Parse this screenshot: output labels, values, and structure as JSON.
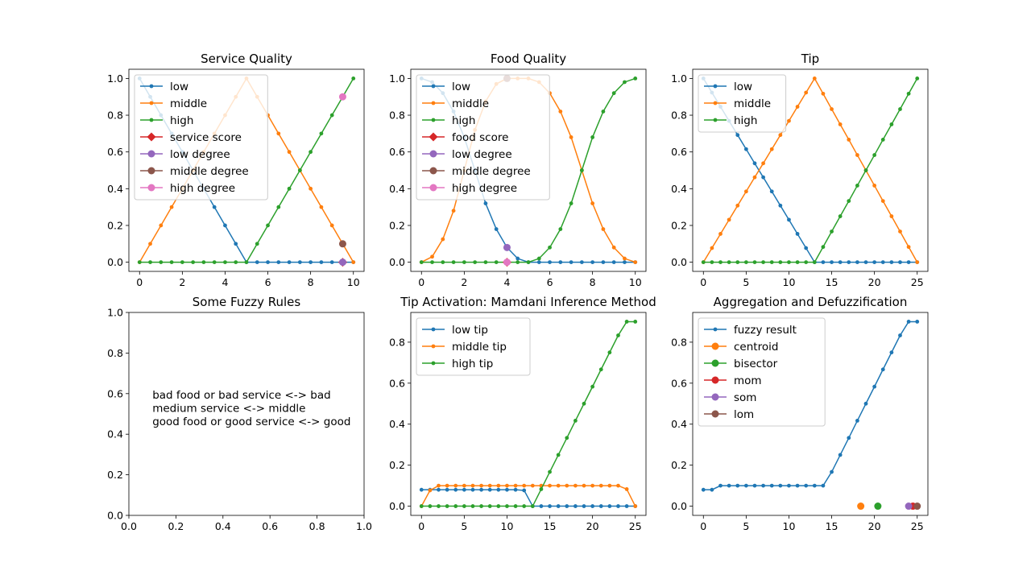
{
  "colors": {
    "blue": "#1f77b4",
    "orange": "#ff7f0e",
    "green": "#2ca02c",
    "red": "#d62728",
    "purple": "#9467bd",
    "brown": "#8c564b",
    "pink": "#e377c2"
  },
  "chart_data": [
    {
      "type": "line",
      "title": "Service Quality",
      "xlim": [
        -0.5,
        10.5
      ],
      "ylim": [
        -0.05,
        1.05
      ],
      "xticks": [
        0,
        2,
        4,
        6,
        8,
        10
      ],
      "yticks": [
        0.0,
        0.2,
        0.4,
        0.6,
        0.8,
        1.0
      ],
      "xtick_labels": [
        "0",
        "2",
        "4",
        "6",
        "8",
        "10"
      ],
      "ytick_labels": [
        "0.0",
        "0.2",
        "0.4",
        "0.6",
        "0.8",
        "1.0"
      ],
      "legend_position": "upper-left",
      "x": [
        0,
        0.5,
        1,
        1.5,
        2,
        2.5,
        3,
        3.5,
        4,
        4.5,
        5,
        5.5,
        6,
        6.5,
        7,
        7.5,
        8,
        8.5,
        9,
        9.5,
        10
      ],
      "series": [
        {
          "name": "low",
          "color": "blue",
          "style": "line-dot",
          "y": [
            1,
            0.9,
            0.8,
            0.7,
            0.6,
            0.5,
            0.4,
            0.3,
            0.2,
            0.1,
            0,
            0,
            0,
            0,
            0,
            0,
            0,
            0,
            0,
            0,
            0
          ]
        },
        {
          "name": "middle",
          "color": "orange",
          "style": "line-dot",
          "y": [
            0,
            0.1,
            0.2,
            0.3,
            0.4,
            0.5,
            0.6,
            0.7,
            0.8,
            0.9,
            1.0,
            0.9,
            0.8,
            0.7,
            0.6,
            0.5,
            0.4,
            0.3,
            0.2,
            0.1,
            0
          ]
        },
        {
          "name": "high",
          "color": "green",
          "style": "line-dot",
          "y": [
            0,
            0,
            0,
            0,
            0,
            0,
            0,
            0,
            0,
            0,
            0,
            0.1,
            0.2,
            0.3,
            0.4,
            0.5,
            0.6,
            0.7,
            0.8,
            0.9,
            1.0
          ]
        },
        {
          "name": "service score",
          "color": "red",
          "style": "diamond",
          "points": [
            [
              9.5,
              0
            ]
          ]
        },
        {
          "name": "low degree",
          "color": "purple",
          "style": "circle",
          "points": [
            [
              9.5,
              0
            ]
          ]
        },
        {
          "name": "middle degree",
          "color": "brown",
          "style": "circle",
          "points": [
            [
              9.5,
              0.1
            ]
          ]
        },
        {
          "name": "high degree",
          "color": "pink",
          "style": "circle",
          "points": [
            [
              9.5,
              0.9
            ]
          ]
        }
      ]
    },
    {
      "type": "line",
      "title": "Food Quality",
      "xlim": [
        -0.5,
        10.5
      ],
      "ylim": [
        -0.05,
        1.05
      ],
      "xticks": [
        0,
        2,
        4,
        6,
        8,
        10
      ],
      "yticks": [
        0.0,
        0.2,
        0.4,
        0.6,
        0.8,
        1.0
      ],
      "xtick_labels": [
        "0",
        "2",
        "4",
        "6",
        "8",
        "10"
      ],
      "ytick_labels": [
        "0.0",
        "0.2",
        "0.4",
        "0.6",
        "0.8",
        "1.0"
      ],
      "legend_position": "upper-left",
      "x": [
        0,
        0.5,
        1,
        1.5,
        2,
        2.5,
        3,
        3.5,
        4,
        4.5,
        5,
        5.5,
        6,
        6.5,
        7,
        7.5,
        8,
        8.5,
        9,
        9.5,
        10
      ],
      "series": [
        {
          "name": "low",
          "color": "blue",
          "style": "line-dot",
          "y": [
            1,
            0.98,
            0.92,
            0.82,
            0.68,
            0.5,
            0.32,
            0.18,
            0.08,
            0.02,
            0,
            0,
            0,
            0,
            0,
            0,
            0,
            0,
            0,
            0,
            0
          ]
        },
        {
          "name": "middle",
          "color": "orange",
          "style": "line-dot",
          "y": [
            0,
            0.03,
            0.125,
            0.28,
            0.5,
            0.72,
            0.875,
            0.97,
            1.0,
            1.0,
            1.0,
            0.98,
            0.92,
            0.82,
            0.68,
            0.5,
            0.32,
            0.18,
            0.08,
            0.02,
            0
          ]
        },
        {
          "name": "high",
          "color": "green",
          "style": "line-dot",
          "y": [
            0,
            0,
            0,
            0,
            0,
            0,
            0,
            0,
            0,
            0,
            0,
            0.02,
            0.08,
            0.18,
            0.32,
            0.5,
            0.68,
            0.82,
            0.92,
            0.98,
            1.0
          ]
        },
        {
          "name": "food score",
          "color": "red",
          "style": "diamond",
          "points": [
            [
              4,
              0
            ]
          ]
        },
        {
          "name": "low degree",
          "color": "purple",
          "style": "circle",
          "points": [
            [
              4,
              0.08
            ]
          ]
        },
        {
          "name": "middle degree",
          "color": "brown",
          "style": "circle",
          "points": [
            [
              4,
              1.0
            ]
          ]
        },
        {
          "name": "high degree",
          "color": "pink",
          "style": "circle",
          "points": [
            [
              4,
              0
            ]
          ]
        }
      ]
    },
    {
      "type": "line",
      "title": "Tip",
      "xlim": [
        -1.25,
        26.25
      ],
      "ylim": [
        -0.05,
        1.05
      ],
      "xticks": [
        0,
        5,
        10,
        15,
        20,
        25
      ],
      "yticks": [
        0.0,
        0.2,
        0.4,
        0.6,
        0.8,
        1.0
      ],
      "xtick_labels": [
        "0",
        "5",
        "10",
        "15",
        "20",
        "25"
      ],
      "ytick_labels": [
        "0.0",
        "0.2",
        "0.4",
        "0.6",
        "0.8",
        "1.0"
      ],
      "legend_position": "upper-left",
      "x": [
        0,
        1,
        2,
        3,
        4,
        5,
        6,
        7,
        8,
        9,
        10,
        11,
        12,
        13,
        14,
        15,
        16,
        17,
        18,
        19,
        20,
        21,
        22,
        23,
        24,
        25
      ],
      "series": [
        {
          "name": "low",
          "color": "blue",
          "style": "line-dot",
          "y": [
            1,
            0.923,
            0.846,
            0.769,
            0.692,
            0.615,
            0.538,
            0.462,
            0.385,
            0.308,
            0.231,
            0.154,
            0.077,
            0,
            0,
            0,
            0,
            0,
            0,
            0,
            0,
            0,
            0,
            0,
            0,
            0
          ]
        },
        {
          "name": "middle",
          "color": "orange",
          "style": "line-dot",
          "y": [
            0,
            0.077,
            0.154,
            0.231,
            0.308,
            0.385,
            0.462,
            0.538,
            0.615,
            0.692,
            0.769,
            0.846,
            0.923,
            1.0,
            0.917,
            0.833,
            0.75,
            0.667,
            0.583,
            0.5,
            0.417,
            0.333,
            0.25,
            0.167,
            0.083,
            0
          ]
        },
        {
          "name": "high",
          "color": "green",
          "style": "line-dot",
          "y": [
            0,
            0,
            0,
            0,
            0,
            0,
            0,
            0,
            0,
            0,
            0,
            0,
            0,
            0,
            0.083,
            0.167,
            0.25,
            0.333,
            0.417,
            0.5,
            0.583,
            0.667,
            0.75,
            0.833,
            0.917,
            1.0
          ]
        }
      ]
    },
    {
      "type": "text",
      "title": "Some Fuzzy Rules",
      "xlim": [
        0,
        1
      ],
      "ylim": [
        0,
        1
      ],
      "xticks": [
        0,
        0.2,
        0.4,
        0.6,
        0.8,
        1.0
      ],
      "yticks": [
        0,
        0.2,
        0.4,
        0.6,
        0.8,
        1.0
      ],
      "xtick_labels": [
        "0.0",
        "0.2",
        "0.4",
        "0.6",
        "0.8",
        "1.0"
      ],
      "ytick_labels": [
        "0.0",
        "0.2",
        "0.4",
        "0.6",
        "0.8",
        "1.0"
      ],
      "text_lines": [
        "bad food or bad service <-> bad",
        "medium service <-> middle",
        "good food or good service <-> good"
      ],
      "text_anchor": [
        0.1,
        0.53
      ]
    },
    {
      "type": "line",
      "title": "Tip Activation: Mamdani Inference Method",
      "xlim": [
        -1.25,
        26.25
      ],
      "ylim": [
        -0.045,
        0.945
      ],
      "xticks": [
        0,
        5,
        10,
        15,
        20,
        25
      ],
      "yticks": [
        0.0,
        0.2,
        0.4,
        0.6,
        0.8
      ],
      "xtick_labels": [
        "0",
        "5",
        "10",
        "15",
        "20",
        "25"
      ],
      "ytick_labels": [
        "0.0",
        "0.2",
        "0.4",
        "0.6",
        "0.8"
      ],
      "legend_position": "upper-left",
      "x": [
        0,
        1,
        2,
        3,
        4,
        5,
        6,
        7,
        8,
        9,
        10,
        11,
        12,
        13,
        14,
        15,
        16,
        17,
        18,
        19,
        20,
        21,
        22,
        23,
        24,
        25
      ],
      "series": [
        {
          "name": "low tip",
          "color": "blue",
          "style": "line-dot",
          "y": [
            0.08,
            0.08,
            0.08,
            0.08,
            0.08,
            0.08,
            0.08,
            0.08,
            0.08,
            0.08,
            0.08,
            0.08,
            0.077,
            0,
            0,
            0,
            0,
            0,
            0,
            0,
            0,
            0,
            0,
            0,
            0,
            0
          ]
        },
        {
          "name": "middle tip",
          "color": "orange",
          "style": "line-dot",
          "y": [
            0,
            0.077,
            0.1,
            0.1,
            0.1,
            0.1,
            0.1,
            0.1,
            0.1,
            0.1,
            0.1,
            0.1,
            0.1,
            0.1,
            0.1,
            0.1,
            0.1,
            0.1,
            0.1,
            0.1,
            0.1,
            0.1,
            0.1,
            0.1,
            0.083,
            0
          ]
        },
        {
          "name": "high tip",
          "color": "green",
          "style": "line-dot",
          "y": [
            0,
            0,
            0,
            0,
            0,
            0,
            0,
            0,
            0,
            0,
            0,
            0,
            0,
            0,
            0.083,
            0.167,
            0.25,
            0.333,
            0.417,
            0.5,
            0.583,
            0.667,
            0.75,
            0.833,
            0.9,
            0.9
          ]
        }
      ]
    },
    {
      "type": "line",
      "title": "Aggregation and Defuzzification",
      "xlim": [
        -1.25,
        26.25
      ],
      "ylim": [
        -0.045,
        0.945
      ],
      "xticks": [
        0,
        5,
        10,
        15,
        20,
        25
      ],
      "yticks": [
        0.0,
        0.2,
        0.4,
        0.6,
        0.8
      ],
      "xtick_labels": [
        "0",
        "5",
        "10",
        "15",
        "20",
        "25"
      ],
      "ytick_labels": [
        "0.0",
        "0.2",
        "0.4",
        "0.6",
        "0.8"
      ],
      "legend_position": "upper-left",
      "x": [
        0,
        1,
        2,
        3,
        4,
        5,
        6,
        7,
        8,
        9,
        10,
        11,
        12,
        13,
        14,
        15,
        16,
        17,
        18,
        19,
        20,
        21,
        22,
        23,
        24,
        25
      ],
      "series": [
        {
          "name": "fuzzy result",
          "color": "blue",
          "style": "line-dot",
          "y": [
            0.08,
            0.08,
            0.1,
            0.1,
            0.1,
            0.1,
            0.1,
            0.1,
            0.1,
            0.1,
            0.1,
            0.1,
            0.1,
            0.1,
            0.1,
            0.167,
            0.25,
            0.333,
            0.417,
            0.5,
            0.583,
            0.667,
            0.75,
            0.833,
            0.9,
            0.9
          ]
        },
        {
          "name": "centroid",
          "color": "orange",
          "style": "circle",
          "points": [
            [
              18.4,
              0
            ]
          ]
        },
        {
          "name": "bisector",
          "color": "green",
          "style": "circle",
          "points": [
            [
              20.4,
              0
            ]
          ]
        },
        {
          "name": "mom",
          "color": "red",
          "style": "circle",
          "points": [
            [
              24.5,
              0
            ]
          ]
        },
        {
          "name": "som",
          "color": "purple",
          "style": "circle",
          "points": [
            [
              24.0,
              0
            ]
          ]
        },
        {
          "name": "lom",
          "color": "brown",
          "style": "circle",
          "points": [
            [
              25.0,
              0
            ]
          ]
        }
      ]
    }
  ]
}
